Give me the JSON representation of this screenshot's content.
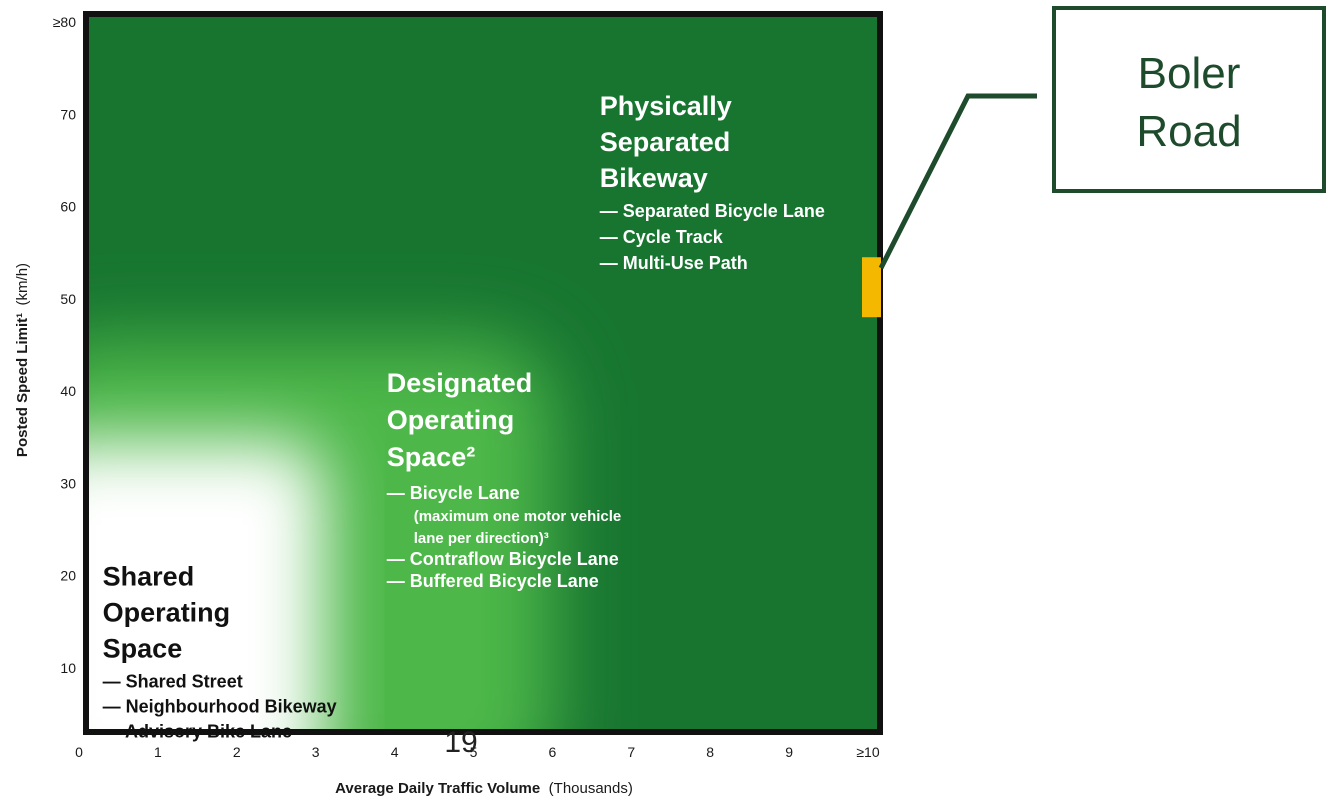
{
  "chart_data": {
    "type": "heatmap",
    "title": "",
    "x_axis": {
      "label_bold": "Average Daily Traffic Volume",
      "label_normal": "(Thousands)",
      "range": [
        0,
        10
      ],
      "ticks": [
        "0",
        "1",
        "2",
        "3",
        "4",
        "5",
        "6",
        "7",
        "8",
        "9",
        "≥10"
      ]
    },
    "y_axis": {
      "label_bold": "Posted Speed Limit¹",
      "label_normal": "(km/h)",
      "range": [
        0,
        80
      ],
      "ticks": [
        {
          "v": 10,
          "label": "10"
        },
        {
          "v": 20,
          "label": "20"
        },
        {
          "v": 30,
          "label": "30"
        },
        {
          "v": 40,
          "label": "40"
        },
        {
          "v": 50,
          "label": "50"
        },
        {
          "v": 60,
          "label": "60"
        },
        {
          "v": 70,
          "label": "70"
        },
        {
          "v": 80,
          "label": "≥80"
        }
      ]
    },
    "zones": [
      {
        "id": "shared",
        "title_lines": [
          "Shared",
          "Operating",
          "Space"
        ],
        "items": [
          "— Shared Street",
          "— Neighbourhood Bikeway",
          "— Advisory Bike Lane"
        ],
        "label_anchor": {
          "x": 0.3,
          "y": 20
        },
        "color": "#111111"
      },
      {
        "id": "designated",
        "title_lines": [
          "Designated",
          "Operating",
          "Space²"
        ],
        "items": [
          "— Bicycle Lane",
          "(maximum one motor vehicle",
          "lane per direction)³",
          "— Contraflow Bicycle Lane",
          "— Buffered Bicycle Lane"
        ],
        "label_anchor": {
          "x": 3.9,
          "y": 41
        },
        "color": "#ffffff"
      },
      {
        "id": "separated",
        "title_lines": [
          "Physically",
          "Separated",
          "Bikeway"
        ],
        "items": [
          "— Separated Bicycle Lane",
          "— Cycle Track",
          "— Multi-Use Path"
        ],
        "label_anchor": {
          "x": 6.6,
          "y": 71
        },
        "color": "#ffffff"
      }
    ],
    "highlight": {
      "x": 10,
      "y_range": [
        48,
        54.5
      ],
      "color": "#f5b800"
    },
    "colors": {
      "dark_green": "#177530",
      "mid_green": "#4db848",
      "white": "#ffffff",
      "border": "#111111"
    }
  },
  "callout": {
    "lines": [
      "Boler",
      "Road"
    ],
    "border_color": "#1d4b2c"
  },
  "page_number": "19"
}
